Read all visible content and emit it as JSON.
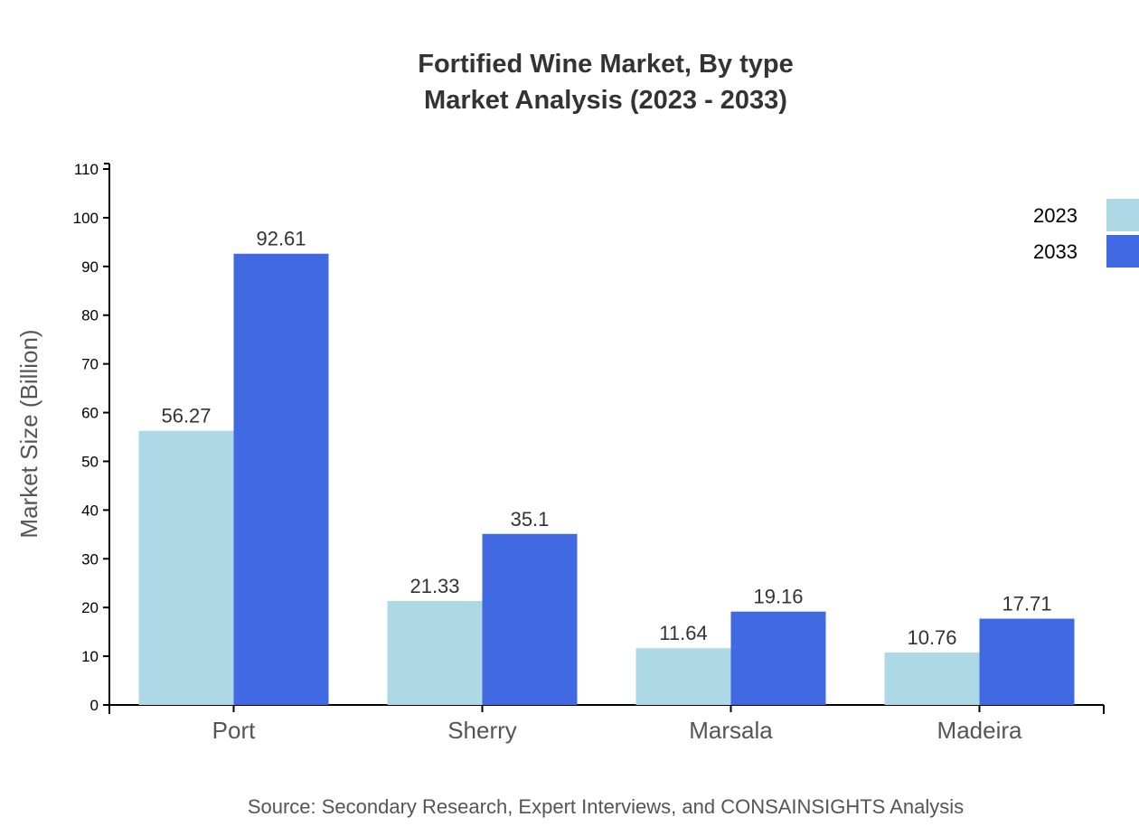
{
  "chart_data": {
    "type": "bar",
    "title": "Fortified Wine Market, By type",
    "subtitle": "Market Analysis (2023 - 2033)",
    "xlabel": "",
    "ylabel": "Market Size (Billion)",
    "ylim": [
      0,
      110
    ],
    "yticks": [
      0,
      10,
      20,
      30,
      40,
      50,
      60,
      70,
      80,
      90,
      100,
      110
    ],
    "categories": [
      "Port",
      "Sherry",
      "Marsala",
      "Madeira"
    ],
    "series": [
      {
        "name": "2023",
        "color": "#add8e6",
        "values": [
          56.27,
          21.33,
          11.64,
          10.76
        ]
      },
      {
        "name": "2033",
        "color": "#4169e1",
        "values": [
          92.61,
          35.1,
          19.16,
          17.71
        ]
      }
    ],
    "legend_position": "top-right",
    "grid": false,
    "source": "Source: Secondary Research, Expert Interviews, and CONSAINSIGHTS Analysis"
  }
}
